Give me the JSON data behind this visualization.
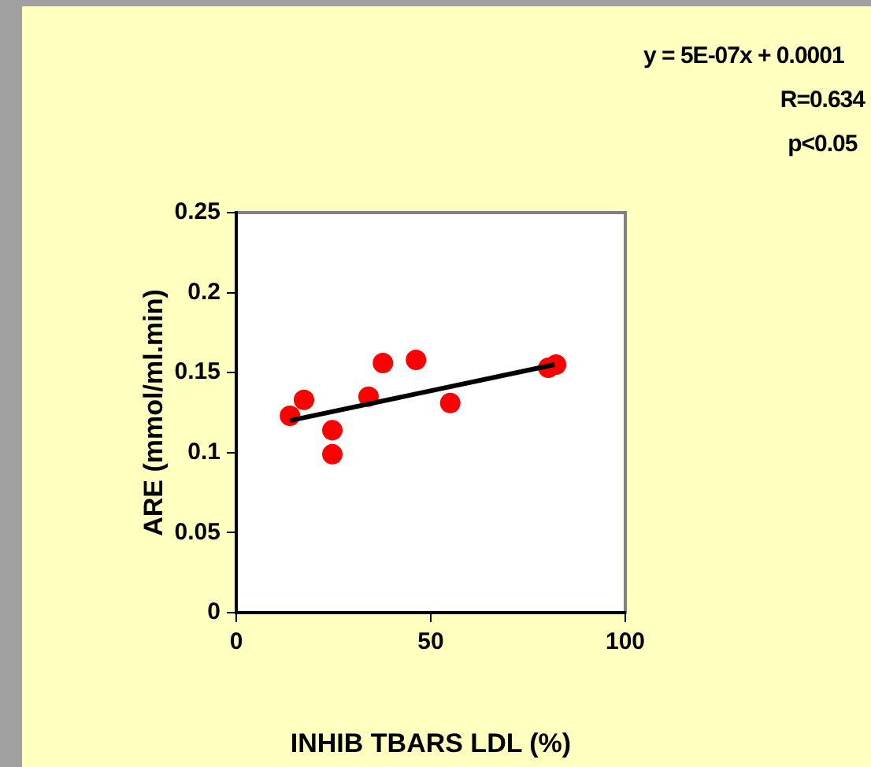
{
  "chart_data": {
    "type": "scatter",
    "xlabel": "INHIB TBARS LDL (%)",
    "ylabel": "ARE (mmol/ml.min)",
    "annotations": [
      "y = 5E-07x + 0.0001",
      "R=0.634",
      "p<0.05"
    ],
    "xlim": [
      0,
      100
    ],
    "xticks": [
      0,
      50,
      100
    ],
    "ylim": [
      0,
      0.25
    ],
    "yticks": [
      0,
      0.05,
      0.1,
      0.15,
      0.2,
      0.25
    ],
    "grid": false,
    "legend": false,
    "series": [
      {
        "type": "scatter",
        "marker": "circle",
        "color": "#ff0000",
        "x": [
          13.8,
          17.4,
          24.7,
          24.7,
          34,
          37.7,
          46.2,
          55,
          80.2,
          82.2
        ],
        "values": [
          0.123,
          0.133,
          0.114,
          0.099,
          0.135,
          0.156,
          0.158,
          0.131,
          0.153,
          0.155
        ]
      },
      {
        "type": "line",
        "marker": "none",
        "color": "#000000",
        "x": [
          13.8,
          81.8
        ],
        "values": [
          0.12,
          0.155
        ]
      }
    ]
  }
}
